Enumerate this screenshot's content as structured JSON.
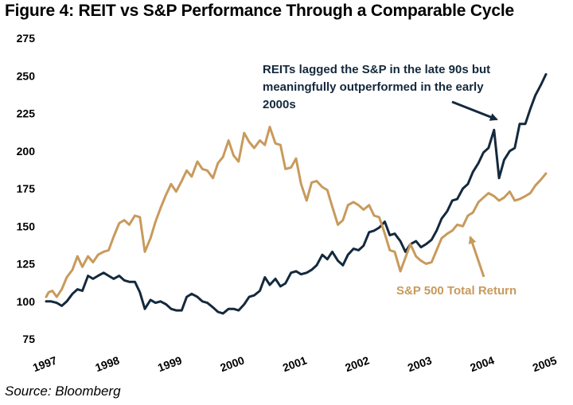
{
  "title": "Figure 4: REIT vs S&P Performance Through a Comparable Cycle",
  "source": "Source: Bloomberg",
  "colors": {
    "reit": "#14293d",
    "sp500": "#c89a5c"
  },
  "chart_data": {
    "type": "line",
    "title": "Figure 4: REIT vs S&P Performance Through a Comparable Cycle",
    "xlabel": "",
    "ylabel": "",
    "xlim": [
      1997,
      2005
    ],
    "ylim": [
      75,
      275
    ],
    "y_ticks": [
      75,
      100,
      125,
      150,
      175,
      200,
      225,
      250,
      275
    ],
    "x_ticks": [
      1997,
      1998,
      1999,
      2000,
      2001,
      2002,
      2003,
      2004,
      2005
    ],
    "x_tick_labels": [
      "1997",
      "1998",
      "1999",
      "2000",
      "2001",
      "2002",
      "2003",
      "2004",
      "2005"
    ],
    "grid": false,
    "series": [
      {
        "key": "reit",
        "color": "#14293d",
        "points": [
          [
            1997.0,
            100
          ],
          [
            1997.08,
            100
          ],
          [
            1997.17,
            99
          ],
          [
            1997.25,
            97
          ],
          [
            1997.33,
            100
          ],
          [
            1997.42,
            105
          ],
          [
            1997.5,
            108
          ],
          [
            1997.58,
            107
          ],
          [
            1997.67,
            117
          ],
          [
            1997.75,
            115
          ],
          [
            1997.83,
            117
          ],
          [
            1997.92,
            119
          ],
          [
            1998.0,
            117
          ],
          [
            1998.08,
            115
          ],
          [
            1998.17,
            117
          ],
          [
            1998.25,
            114
          ],
          [
            1998.33,
            113
          ],
          [
            1998.42,
            113
          ],
          [
            1998.5,
            106
          ],
          [
            1998.58,
            95
          ],
          [
            1998.67,
            101
          ],
          [
            1998.75,
            99
          ],
          [
            1998.83,
            100
          ],
          [
            1998.92,
            98
          ],
          [
            1999.0,
            95
          ],
          [
            1999.08,
            94
          ],
          [
            1999.17,
            94
          ],
          [
            1999.25,
            103
          ],
          [
            1999.33,
            105
          ],
          [
            1999.42,
            103
          ],
          [
            1999.5,
            100
          ],
          [
            1999.58,
            99
          ],
          [
            1999.67,
            96
          ],
          [
            1999.75,
            93
          ],
          [
            1999.83,
            92
          ],
          [
            1999.92,
            95
          ],
          [
            2000.0,
            95
          ],
          [
            2000.08,
            94
          ],
          [
            2000.17,
            98
          ],
          [
            2000.25,
            103
          ],
          [
            2000.33,
            104
          ],
          [
            2000.42,
            107
          ],
          [
            2000.5,
            116
          ],
          [
            2000.58,
            111
          ],
          [
            2000.67,
            115
          ],
          [
            2000.75,
            110
          ],
          [
            2000.83,
            112
          ],
          [
            2000.92,
            119
          ],
          [
            2001.0,
            120
          ],
          [
            2001.08,
            118
          ],
          [
            2001.17,
            119
          ],
          [
            2001.25,
            121
          ],
          [
            2001.33,
            124
          ],
          [
            2001.42,
            131
          ],
          [
            2001.5,
            128
          ],
          [
            2001.58,
            133
          ],
          [
            2001.67,
            127
          ],
          [
            2001.75,
            124
          ],
          [
            2001.83,
            131
          ],
          [
            2001.92,
            135
          ],
          [
            2002.0,
            134
          ],
          [
            2002.08,
            137
          ],
          [
            2002.17,
            146
          ],
          [
            2002.25,
            147
          ],
          [
            2002.33,
            149
          ],
          [
            2002.42,
            153
          ],
          [
            2002.5,
            144
          ],
          [
            2002.58,
            145
          ],
          [
            2002.67,
            140
          ],
          [
            2002.75,
            133
          ],
          [
            2002.83,
            138
          ],
          [
            2002.92,
            140
          ],
          [
            2003.0,
            136
          ],
          [
            2003.08,
            138
          ],
          [
            2003.17,
            141
          ],
          [
            2003.25,
            147
          ],
          [
            2003.33,
            155
          ],
          [
            2003.42,
            160
          ],
          [
            2003.5,
            167
          ],
          [
            2003.58,
            168
          ],
          [
            2003.67,
            175
          ],
          [
            2003.75,
            178
          ],
          [
            2003.83,
            186
          ],
          [
            2003.92,
            192
          ],
          [
            2004.0,
            199
          ],
          [
            2004.08,
            202
          ],
          [
            2004.17,
            214
          ],
          [
            2004.25,
            182
          ],
          [
            2004.33,
            194
          ],
          [
            2004.42,
            200
          ],
          [
            2004.5,
            202
          ],
          [
            2004.58,
            218
          ],
          [
            2004.67,
            218
          ],
          [
            2004.75,
            228
          ],
          [
            2004.83,
            237
          ],
          [
            2004.92,
            244
          ],
          [
            2005.0,
            251
          ]
        ]
      },
      {
        "key": "sp500",
        "color": "#c89a5c",
        "points": [
          [
            1997.0,
            103
          ],
          [
            1997.04,
            106
          ],
          [
            1997.1,
            107
          ],
          [
            1997.17,
            103
          ],
          [
            1997.25,
            108
          ],
          [
            1997.33,
            116
          ],
          [
            1997.42,
            121
          ],
          [
            1997.5,
            130
          ],
          [
            1997.58,
            123
          ],
          [
            1997.67,
            130
          ],
          [
            1997.75,
            126
          ],
          [
            1997.83,
            131
          ],
          [
            1997.92,
            133
          ],
          [
            1998.0,
            134
          ],
          [
            1998.08,
            143
          ],
          [
            1998.17,
            152
          ],
          [
            1998.25,
            154
          ],
          [
            1998.33,
            151
          ],
          [
            1998.42,
            157
          ],
          [
            1998.5,
            156
          ],
          [
            1998.58,
            133
          ],
          [
            1998.67,
            142
          ],
          [
            1998.75,
            153
          ],
          [
            1998.83,
            162
          ],
          [
            1998.92,
            171
          ],
          [
            1999.0,
            178
          ],
          [
            1999.08,
            173
          ],
          [
            1999.17,
            180
          ],
          [
            1999.25,
            187
          ],
          [
            1999.33,
            183
          ],
          [
            1999.42,
            193
          ],
          [
            1999.5,
            188
          ],
          [
            1999.58,
            187
          ],
          [
            1999.67,
            182
          ],
          [
            1999.75,
            192
          ],
          [
            1999.83,
            196
          ],
          [
            1999.92,
            207
          ],
          [
            2000.0,
            197
          ],
          [
            2000.08,
            193
          ],
          [
            2000.17,
            212
          ],
          [
            2000.25,
            206
          ],
          [
            2000.33,
            202
          ],
          [
            2000.42,
            207
          ],
          [
            2000.5,
            204
          ],
          [
            2000.58,
            216
          ],
          [
            2000.67,
            205
          ],
          [
            2000.75,
            204
          ],
          [
            2000.83,
            188
          ],
          [
            2000.92,
            189
          ],
          [
            2001.0,
            195
          ],
          [
            2001.08,
            178
          ],
          [
            2001.17,
            167
          ],
          [
            2001.25,
            179
          ],
          [
            2001.33,
            180
          ],
          [
            2001.42,
            176
          ],
          [
            2001.5,
            174
          ],
          [
            2001.58,
            163
          ],
          [
            2001.67,
            151
          ],
          [
            2001.75,
            154
          ],
          [
            2001.83,
            164
          ],
          [
            2001.92,
            166
          ],
          [
            2002.0,
            164
          ],
          [
            2002.08,
            161
          ],
          [
            2002.17,
            164
          ],
          [
            2002.25,
            157
          ],
          [
            2002.33,
            156
          ],
          [
            2002.42,
            145
          ],
          [
            2002.5,
            134
          ],
          [
            2002.58,
            133
          ],
          [
            2002.67,
            120
          ],
          [
            2002.75,
            129
          ],
          [
            2002.83,
            138
          ],
          [
            2002.92,
            130
          ],
          [
            2003.0,
            127
          ],
          [
            2003.08,
            125
          ],
          [
            2003.17,
            126
          ],
          [
            2003.25,
            134
          ],
          [
            2003.33,
            142
          ],
          [
            2003.42,
            145
          ],
          [
            2003.5,
            147
          ],
          [
            2003.58,
            151
          ],
          [
            2003.67,
            150
          ],
          [
            2003.75,
            157
          ],
          [
            2003.83,
            159
          ],
          [
            2003.92,
            166
          ],
          [
            2004.0,
            169
          ],
          [
            2004.08,
            172
          ],
          [
            2004.17,
            170
          ],
          [
            2004.25,
            167
          ],
          [
            2004.33,
            169
          ],
          [
            2004.42,
            173
          ],
          [
            2004.5,
            167
          ],
          [
            2004.58,
            168
          ],
          [
            2004.67,
            170
          ],
          [
            2004.75,
            172
          ],
          [
            2004.83,
            177
          ],
          [
            2004.92,
            181
          ],
          [
            2005.0,
            185
          ]
        ]
      }
    ],
    "annotations": [
      {
        "key": "reit-note",
        "lines": [
          "REITs lagged the S&P in the late 90s but",
          "meaningfully outperformed in the early",
          "2000s"
        ],
        "color": "#14293d"
      },
      {
        "key": "sp-note",
        "lines": [
          "S&P 500 Total Return"
        ],
        "color": "#c89a5c"
      }
    ]
  }
}
